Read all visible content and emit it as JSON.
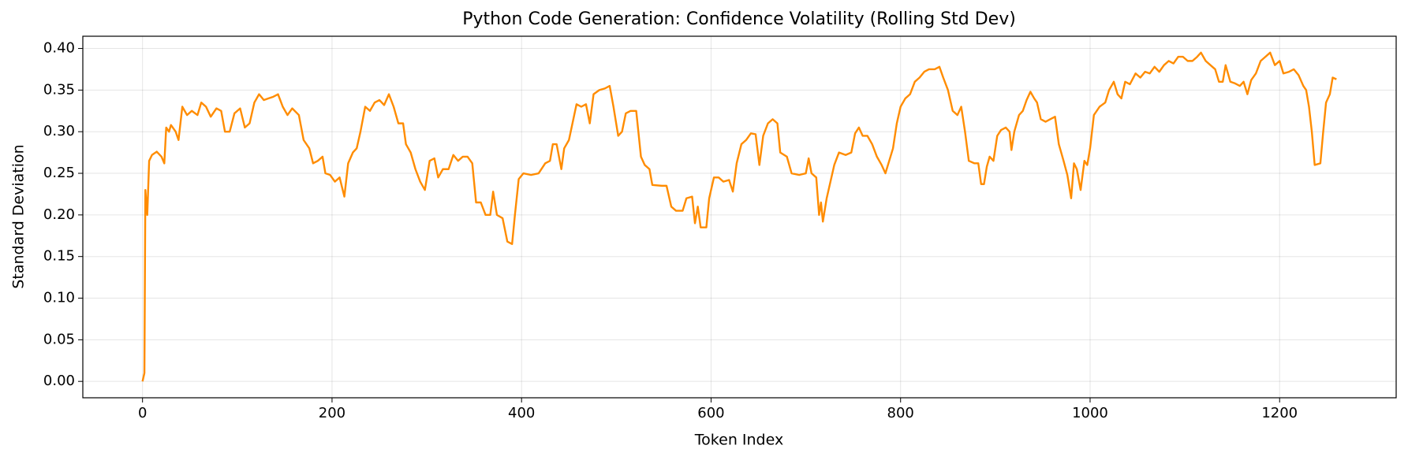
{
  "chart_data": {
    "type": "line",
    "title": "Python Code Generation: Confidence Volatility (Rolling Std Dev)",
    "x_label": "Token Index",
    "y_label": "Standard Deviation",
    "grid": true,
    "xlim": [
      -63,
      1323
    ],
    "ylim": [
      -0.0197,
      0.4147
    ],
    "xticks": [
      0,
      200,
      400,
      600,
      800,
      1000,
      1200
    ],
    "yticks": [
      {
        "value": 0,
        "label": "0.00"
      },
      0.05,
      {
        "value": 0.1,
        "label": "0.10"
      },
      0.15,
      {
        "value": 0.2,
        "label": "0.20"
      },
      0.25,
      {
        "value": 0.3,
        "label": "0.30"
      },
      0.35,
      {
        "value": 0.4,
        "label": "0.40"
      }
    ],
    "x": [
      0,
      2,
      3,
      5,
      7,
      10,
      15,
      20,
      23,
      25,
      28,
      30,
      35,
      38,
      42,
      47,
      52,
      58,
      62,
      67,
      72,
      78,
      83,
      87,
      92,
      97,
      103,
      108,
      113,
      118,
      123,
      128,
      133,
      138,
      143,
      148,
      153,
      158,
      165,
      170,
      176,
      180,
      185,
      190,
      193,
      198,
      203,
      208,
      213,
      217,
      222,
      226,
      230,
      235,
      240,
      245,
      250,
      255,
      260,
      265,
      270,
      275,
      278,
      283,
      288,
      293,
      298,
      303,
      308,
      312,
      317,
      323,
      328,
      333,
      338,
      343,
      348,
      352,
      357,
      362,
      367,
      370,
      374,
      380,
      385,
      390,
      393,
      397,
      402,
      410,
      418,
      425,
      430,
      433,
      437,
      442,
      445,
      450,
      458,
      463,
      468,
      472,
      476,
      482,
      488,
      493,
      497,
      502,
      506,
      510,
      515,
      521,
      526,
      530,
      535,
      538,
      548,
      553,
      558,
      563,
      570,
      574,
      580,
      583,
      586,
      589,
      595,
      598,
      603,
      608,
      613,
      619,
      623,
      627,
      632,
      637,
      642,
      647,
      651,
      655,
      660,
      665,
      670,
      673,
      680,
      685,
      693,
      700,
      703,
      706,
      711,
      714,
      716,
      718,
      722,
      726,
      730,
      735,
      742,
      748,
      752,
      756,
      760,
      765,
      770,
      775,
      780,
      784,
      788,
      792,
      796,
      800,
      805,
      810,
      815,
      820,
      825,
      830,
      836,
      841,
      845,
      850,
      855,
      860,
      864,
      868,
      872,
      878,
      882,
      885,
      888,
      891,
      894,
      898,
      902,
      906,
      911,
      915,
      917,
      920,
      925,
      929,
      933,
      937,
      941,
      944,
      948,
      953,
      958,
      963,
      967,
      972,
      976,
      980,
      983,
      986,
      990,
      994,
      997,
      1000,
      1004,
      1010,
      1016,
      1020,
      1025,
      1029,
      1033,
      1037,
      1042,
      1048,
      1053,
      1058,
      1063,
      1068,
      1073,
      1078,
      1083,
      1088,
      1093,
      1098,
      1103,
      1108,
      1113,
      1117,
      1122,
      1127,
      1132,
      1136,
      1140,
      1143,
      1148,
      1153,
      1158,
      1162,
      1166,
      1170,
      1175,
      1180,
      1185,
      1190,
      1195,
      1200,
      1204,
      1210,
      1215,
      1220,
      1225,
      1228,
      1231,
      1234,
      1237,
      1243,
      1246,
      1249,
      1253,
      1256,
      1260
    ],
    "series": [
      {
        "name": "Rolling Std Dev",
        "color": "#ff8c00",
        "values": [
          0,
          0.01,
          0.23,
          0.2,
          0.265,
          0.272,
          0.276,
          0.27,
          0.262,
          0.305,
          0.3,
          0.308,
          0.3,
          0.29,
          0.33,
          0.32,
          0.325,
          0.32,
          0.335,
          0.33,
          0.318,
          0.328,
          0.325,
          0.3,
          0.3,
          0.322,
          0.328,
          0.305,
          0.31,
          0.335,
          0.345,
          0.338,
          0.34,
          0.342,
          0.345,
          0.33,
          0.32,
          0.328,
          0.32,
          0.29,
          0.28,
          0.262,
          0.265,
          0.27,
          0.25,
          0.248,
          0.24,
          0.245,
          0.222,
          0.262,
          0.275,
          0.28,
          0.3,
          0.33,
          0.325,
          0.335,
          0.338,
          0.332,
          0.345,
          0.33,
          0.31,
          0.31,
          0.285,
          0.275,
          0.255,
          0.24,
          0.23,
          0.265,
          0.268,
          0.245,
          0.255,
          0.255,
          0.272,
          0.265,
          0.27,
          0.27,
          0.262,
          0.215,
          0.215,
          0.2,
          0.2,
          0.228,
          0.2,
          0.196,
          0.168,
          0.165,
          0.2,
          0.243,
          0.25,
          0.248,
          0.25,
          0.262,
          0.265,
          0.285,
          0.285,
          0.255,
          0.28,
          0.29,
          0.333,
          0.33,
          0.333,
          0.31,
          0.345,
          0.35,
          0.352,
          0.355,
          0.33,
          0.295,
          0.3,
          0.322,
          0.325,
          0.325,
          0.27,
          0.26,
          0.255,
          0.236,
          0.235,
          0.235,
          0.21,
          0.205,
          0.205,
          0.22,
          0.222,
          0.19,
          0.21,
          0.185,
          0.185,
          0.22,
          0.245,
          0.245,
          0.24,
          0.242,
          0.228,
          0.262,
          0.285,
          0.29,
          0.298,
          0.297,
          0.26,
          0.295,
          0.31,
          0.315,
          0.31,
          0.275,
          0.27,
          0.25,
          0.248,
          0.25,
          0.268,
          0.25,
          0.245,
          0.2,
          0.215,
          0.192,
          0.22,
          0.24,
          0.26,
          0.275,
          0.272,
          0.275,
          0.298,
          0.305,
          0.295,
          0.295,
          0.285,
          0.27,
          0.26,
          0.25,
          0.265,
          0.28,
          0.31,
          0.33,
          0.34,
          0.345,
          0.36,
          0.365,
          0.372,
          0.375,
          0.375,
          0.378,
          0.365,
          0.35,
          0.325,
          0.32,
          0.33,
          0.3,
          0.265,
          0.262,
          0.262,
          0.237,
          0.237,
          0.258,
          0.27,
          0.265,
          0.295,
          0.302,
          0.305,
          0.3,
          0.278,
          0.3,
          0.32,
          0.325,
          0.338,
          0.348,
          0.34,
          0.335,
          0.315,
          0.312,
          0.315,
          0.318,
          0.285,
          0.265,
          0.248,
          0.22,
          0.262,
          0.255,
          0.23,
          0.265,
          0.26,
          0.28,
          0.32,
          0.33,
          0.335,
          0.35,
          0.36,
          0.345,
          0.34,
          0.36,
          0.357,
          0.37,
          0.365,
          0.372,
          0.37,
          0.378,
          0.372,
          0.38,
          0.385,
          0.382,
          0.39,
          0.39,
          0.385,
          0.385,
          0.39,
          0.395,
          0.385,
          0.38,
          0.375,
          0.36,
          0.36,
          0.38,
          0.36,
          0.358,
          0.355,
          0.36,
          0.345,
          0.362,
          0.37,
          0.385,
          0.39,
          0.395,
          0.38,
          0.385,
          0.37,
          0.372,
          0.375,
          0.368,
          0.355,
          0.35,
          0.33,
          0.3,
          0.26,
          0.262,
          0.3,
          0.335,
          0.345,
          0.365,
          0.363
        ]
      }
    ]
  }
}
